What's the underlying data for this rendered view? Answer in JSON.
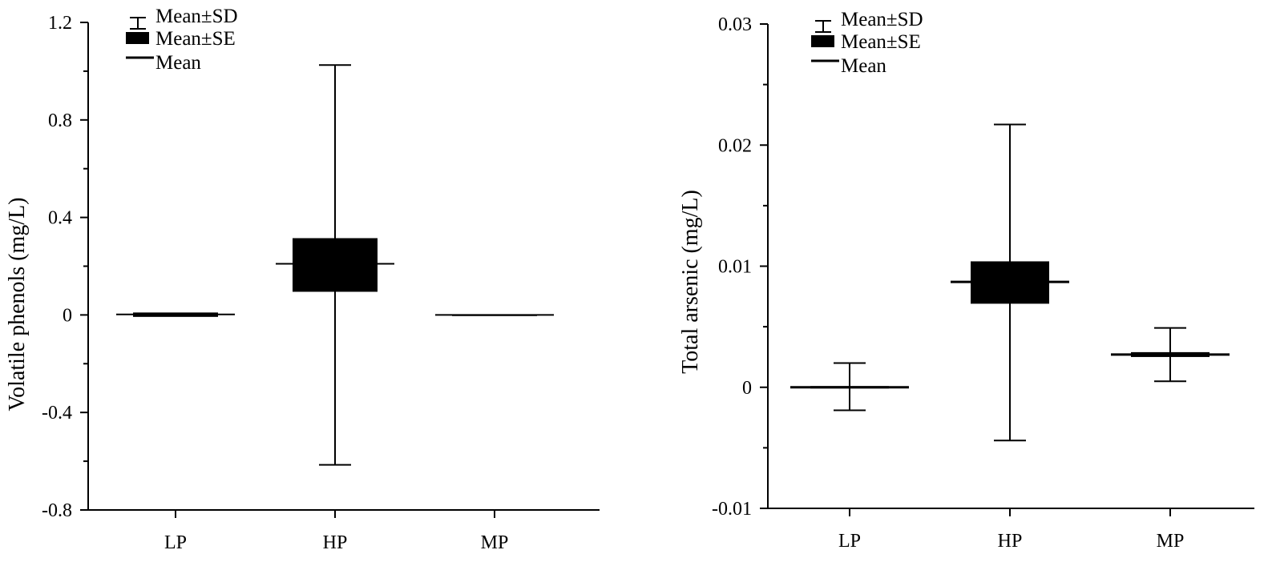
{
  "colors": {
    "ink": "#000000",
    "background": "#ffffff"
  },
  "legend": {
    "sd_label": "Mean±SD",
    "se_label": "Mean±SE",
    "mean_label": "Mean"
  },
  "chart_data": [
    {
      "type": "box",
      "ylabel": "Volatile phenols (mg/L)",
      "ylim": [
        -0.8,
        1.2
      ],
      "yticks": [
        -0.8,
        -0.4,
        0,
        0.4,
        0.8,
        1.2
      ],
      "ytick_labels": [
        "-0.8",
        "-0.4",
        "0",
        "0.4",
        "0.8",
        "1.2"
      ],
      "categories": [
        "LP",
        "HP",
        "MP"
      ],
      "series": [
        {
          "category": "LP",
          "mean": 0.002,
          "se_low": -0.008,
          "se_high": 0.01,
          "sd_low": 0.0,
          "sd_high": 0.0
        },
        {
          "category": "HP",
          "mean": 0.21,
          "se_low": 0.095,
          "se_high": 0.315,
          "sd_low": -0.615,
          "sd_high": 1.025
        },
        {
          "category": "MP",
          "mean": 0.0,
          "se_low": -0.002,
          "se_high": 0.002,
          "sd_low": 0.0,
          "sd_high": 0.0
        }
      ]
    },
    {
      "type": "box",
      "ylabel": "Total arsenic (mg/L)",
      "ylim": [
        -0.01,
        0.03
      ],
      "yticks": [
        -0.01,
        0,
        0.01,
        0.02,
        0.03
      ],
      "ytick_labels": [
        "-0.01",
        "0",
        "0.01",
        "0.02",
        "0.03"
      ],
      "categories": [
        "LP",
        "HP",
        "MP"
      ],
      "series": [
        {
          "category": "LP",
          "mean": 0.0,
          "se_low": -0.0001,
          "se_high": 0.0001,
          "sd_low": -0.0019,
          "sd_high": 0.002
        },
        {
          "category": "HP",
          "mean": 0.0087,
          "se_low": 0.0069,
          "se_high": 0.0104,
          "sd_low": -0.0044,
          "sd_high": 0.0217
        },
        {
          "category": "MP",
          "mean": 0.0027,
          "se_low": 0.0025,
          "se_high": 0.0029,
          "sd_low": 0.0005,
          "sd_high": 0.0049
        }
      ]
    }
  ]
}
